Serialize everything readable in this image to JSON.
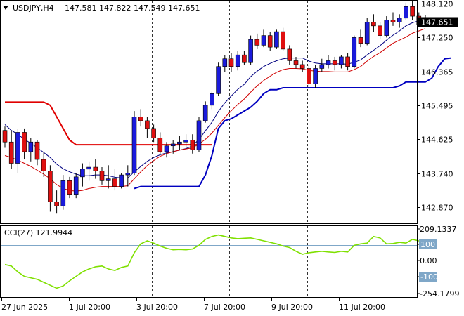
{
  "header": {
    "symbol_label": "USDJPY,H4",
    "ohlc_text": "147.581 147.822 147.549 147.651"
  },
  "colors": {
    "bull": "#1a1adc",
    "bear": "#e01010",
    "ema_fast": "#000080",
    "ema_slow": "#d00000",
    "stop_up": "#0000c0",
    "stop_down": "#e00000",
    "cci": "#7fe000",
    "grid": "#333333",
    "level": "#7fa7c8"
  },
  "chart_data": [
    {
      "type": "candlestick",
      "title": "USDJPY,H4",
      "ylim": [
        142.45,
        148.2
      ],
      "y_ticks": [
        "148.120",
        "147.250",
        "146.365",
        "145.495",
        "144.625",
        "143.740",
        "142.870"
      ],
      "price_tag": "147.651",
      "x_ticks": [
        "27 Jun 2025",
        "1 Jul 20:00",
        "3 Jul 20:00",
        "7 Jul 20:00",
        "9 Jul 20:00",
        "11 Jul 20:00"
      ],
      "candles": [
        [
          144.85,
          144.95,
          144.4,
          144.55
        ],
        [
          144.55,
          144.85,
          143.85,
          144.0
        ],
        [
          144.0,
          144.9,
          143.75,
          144.8
        ],
        [
          144.8,
          144.9,
          144.1,
          144.3
        ],
        [
          144.3,
          144.65,
          144.05,
          144.55
        ],
        [
          144.55,
          144.6,
          143.95,
          144.1
        ],
        [
          144.1,
          144.3,
          143.65,
          143.8
        ],
        [
          143.8,
          143.95,
          142.75,
          143.0
        ],
        [
          143.0,
          143.3,
          142.7,
          142.9
        ],
        [
          142.9,
          143.7,
          142.8,
          143.55
        ],
        [
          143.55,
          143.65,
          143.1,
          143.2
        ],
        [
          143.2,
          143.75,
          143.1,
          143.65
        ],
        [
          143.65,
          144.0,
          143.4,
          143.85
        ],
        [
          143.85,
          144.05,
          143.55,
          143.9
        ],
        [
          143.9,
          144.1,
          143.6,
          143.8
        ],
        [
          143.8,
          143.9,
          143.45,
          143.55
        ],
        [
          143.55,
          143.95,
          143.35,
          143.6
        ],
        [
          143.6,
          143.85,
          143.3,
          143.4
        ],
        [
          143.4,
          143.75,
          143.35,
          143.7
        ],
        [
          143.7,
          143.95,
          143.4,
          143.75
        ],
        [
          143.75,
          145.35,
          143.7,
          145.2
        ],
        [
          145.2,
          145.4,
          144.95,
          145.1
        ],
        [
          145.1,
          145.2,
          144.65,
          144.9
        ],
        [
          144.9,
          145.0,
          144.55,
          144.65
        ],
        [
          144.65,
          144.8,
          144.25,
          144.3
        ],
        [
          144.3,
          144.55,
          144.15,
          144.45
        ],
        [
          144.45,
          144.6,
          144.25,
          144.5
        ],
        [
          144.5,
          144.7,
          144.35,
          144.55
        ],
        [
          144.55,
          144.75,
          144.4,
          144.6
        ],
        [
          144.6,
          144.75,
          144.25,
          144.35
        ],
        [
          144.35,
          145.2,
          144.3,
          145.1
        ],
        [
          145.1,
          145.6,
          145.05,
          145.5
        ],
        [
          145.5,
          145.85,
          145.4,
          145.8
        ],
        [
          145.8,
          146.6,
          145.75,
          146.5
        ],
        [
          146.5,
          146.8,
          146.35,
          146.7
        ],
        [
          146.7,
          146.85,
          146.35,
          146.5
        ],
        [
          146.5,
          146.9,
          146.4,
          146.8
        ],
        [
          146.8,
          146.9,
          146.55,
          146.6
        ],
        [
          146.6,
          147.3,
          146.55,
          147.2
        ],
        [
          147.2,
          147.35,
          146.95,
          147.05
        ],
        [
          147.05,
          147.45,
          147.0,
          147.3
        ],
        [
          147.3,
          147.4,
          146.9,
          147.0
        ],
        [
          147.0,
          147.45,
          146.95,
          147.4
        ],
        [
          147.4,
          147.5,
          146.9,
          146.95
        ],
        [
          146.95,
          147.05,
          146.55,
          146.65
        ],
        [
          146.65,
          146.75,
          146.45,
          146.55
        ],
        [
          146.55,
          146.65,
          146.35,
          146.45
        ],
        [
          146.45,
          146.55,
          145.95,
          146.05
        ],
        [
          146.05,
          146.55,
          145.95,
          146.45
        ],
        [
          146.45,
          146.7,
          146.35,
          146.55
        ],
        [
          146.55,
          146.8,
          146.45,
          146.65
        ],
        [
          146.65,
          146.75,
          146.4,
          146.55
        ],
        [
          146.55,
          146.8,
          146.45,
          146.75
        ],
        [
          146.75,
          146.85,
          146.4,
          146.5
        ],
        [
          146.5,
          147.3,
          146.45,
          147.25
        ],
        [
          147.25,
          147.45,
          147.0,
          147.1
        ],
        [
          147.1,
          147.75,
          147.05,
          147.65
        ],
        [
          147.65,
          147.85,
          147.4,
          147.55
        ],
        [
          147.55,
          147.65,
          147.2,
          147.3
        ],
        [
          147.3,
          147.8,
          147.25,
          147.7
        ],
        [
          147.7,
          147.9,
          147.55,
          147.65
        ],
        [
          147.65,
          147.85,
          147.5,
          147.75
        ],
        [
          147.75,
          148.15,
          147.7,
          148.05
        ],
        [
          148.05,
          148.25,
          147.7,
          147.8
        ],
        [
          147.8,
          147.9,
          147.55,
          147.58
        ],
        [
          147.58,
          147.82,
          147.55,
          147.65
        ]
      ],
      "series": [
        {
          "values": [
            145.0,
            144.85,
            144.75,
            144.62,
            144.52,
            144.4,
            144.28,
            144.15,
            143.98,
            143.86,
            143.78,
            143.72,
            143.68,
            143.68,
            143.7,
            143.7,
            143.68,
            143.64,
            143.62,
            143.62,
            143.78,
            143.92,
            144.05,
            144.15,
            144.22,
            144.27,
            144.3,
            144.34,
            144.38,
            144.45,
            144.62,
            144.84,
            145.06,
            145.34,
            145.56,
            145.74,
            145.91,
            146.04,
            146.24,
            146.38,
            146.5,
            146.58,
            146.65,
            146.7,
            146.72,
            146.72,
            146.72,
            146.64,
            146.59,
            146.57,
            146.57,
            146.57,
            146.57,
            146.56,
            146.61,
            146.67,
            146.8,
            146.92,
            147.04,
            147.18,
            147.31,
            147.42,
            147.55,
            147.63,
            147.68,
            147.72
          ]
        },
        {
          "values": [
            144.2,
            144.15,
            144.08,
            144.0,
            143.92,
            143.82,
            143.72,
            143.6,
            143.45,
            143.35,
            143.3,
            143.28,
            143.3,
            143.35,
            143.38,
            143.4,
            143.4,
            143.4,
            143.4,
            143.42,
            143.6,
            143.78,
            143.94,
            144.07,
            144.18,
            144.25,
            144.3,
            144.34,
            144.37,
            144.4,
            144.5,
            144.62,
            144.78,
            144.98,
            145.18,
            145.36,
            145.52,
            145.66,
            145.84,
            146.0,
            146.14,
            146.25,
            146.35,
            146.42,
            146.45,
            146.45,
            146.44,
            146.4,
            146.38,
            146.37,
            146.37,
            146.36,
            146.36,
            146.36,
            146.42,
            146.5,
            146.64,
            146.76,
            146.86,
            146.98,
            147.1,
            147.18,
            147.26,
            147.36,
            147.42,
            147.48
          ]
        },
        {
          "start": 0,
          "values": [
            145.58,
            145.58,
            145.58,
            145.58,
            145.58,
            145.58,
            145.58,
            145.5,
            145.2,
            144.9,
            144.6,
            144.48,
            144.48,
            144.48,
            144.48,
            144.48,
            144.48,
            144.48,
            144.48,
            144.48,
            144.48,
            144.48,
            144.48,
            144.48,
            144.48,
            144.48,
            144.48,
            144.48,
            144.48,
            144.48,
            144.48,
            144.48,
            144.48
          ]
        },
        {
          "start": 20,
          "values": [
            143.35,
            143.4,
            143.4,
            143.4,
            143.4,
            143.4,
            143.4,
            143.4,
            143.4,
            143.4,
            143.4,
            143.7,
            144.2,
            144.9,
            145.1,
            145.15,
            145.25,
            145.35,
            145.45,
            145.6,
            145.8,
            145.9,
            145.9,
            145.95,
            145.95,
            145.95,
            145.95,
            145.95,
            145.95,
            145.95,
            145.95,
            145.95,
            145.95,
            145.95,
            145.95,
            145.95,
            145.95,
            145.95,
            145.95,
            145.95,
            145.95,
            146.0,
            146.1,
            146.1,
            146.1,
            146.1,
            146.2,
            146.5,
            146.7,
            146.72
          ]
        }
      ]
    },
    {
      "type": "line",
      "title": "CCI(27) 121.9944",
      "ylim": [
        -250,
        230
      ],
      "y_ticks": [
        "209.1337",
        "100",
        "0.00",
        "-100",
        "-254.1799"
      ],
      "levels": [
        100,
        -100
      ],
      "series": [
        {
          "values": [
            -30,
            -40,
            -80,
            -110,
            -120,
            -130,
            -150,
            -170,
            -190,
            -175,
            -140,
            -110,
            -80,
            -60,
            -45,
            -40,
            -60,
            -70,
            -50,
            -40,
            50,
            110,
            130,
            115,
            95,
            80,
            70,
            72,
            70,
            75,
            100,
            140,
            160,
            170,
            160,
            150,
            145,
            148,
            150,
            140,
            130,
            120,
            110,
            95,
            85,
            60,
            40,
            50,
            55,
            60,
            55,
            52,
            60,
            55,
            100,
            110,
            115,
            160,
            150,
            110,
            112,
            120,
            115,
            140,
            130,
            122
          ]
        }
      ]
    }
  ]
}
